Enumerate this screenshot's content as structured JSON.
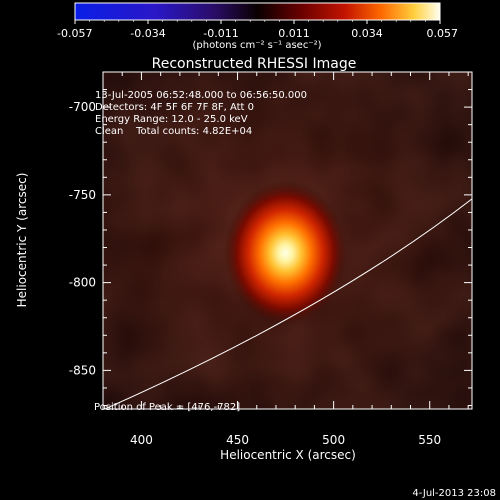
{
  "colorbar": {
    "tick_labels": [
      "-0.057",
      "-0.034",
      "-0.011",
      "0.011",
      "0.034",
      "0.057"
    ],
    "units_label": "(photons cm⁻² s⁻¹ asec⁻²)",
    "range": [
      -0.057,
      0.057
    ]
  },
  "plot": {
    "title": "Reconstructed RHESSI Image",
    "x_axis_title": "Heliocentric X (arcsec)",
    "y_axis_title": "Heliocentric Y (arcsec)",
    "x_tick_labels": [
      "400",
      "450",
      "500",
      "550"
    ],
    "y_tick_labels": [
      "-700",
      "-750",
      "-800",
      "-850"
    ],
    "x_range": [
      380,
      572
    ],
    "y_range": [
      -872,
      -680
    ]
  },
  "info": {
    "time_range": "13-Jul-2005 06:52:48.000 to 06:56:50.000",
    "detectors": "Detectors: 4F 5F 6F 7F 8F, Att 0",
    "energy_range": "Energy Range: 12.0 - 25.0 keV",
    "clean_counts": "Clean    Total counts: 4.82E+04"
  },
  "peak": {
    "label": "Position of Peak = [476,-782]",
    "x": 476,
    "y": -782
  },
  "footer": {
    "timestamp": "4-Jul-2013 23:08"
  },
  "colors": {
    "background": "#000000",
    "foreground": "#ffffff",
    "limb": "#ffffff"
  }
}
